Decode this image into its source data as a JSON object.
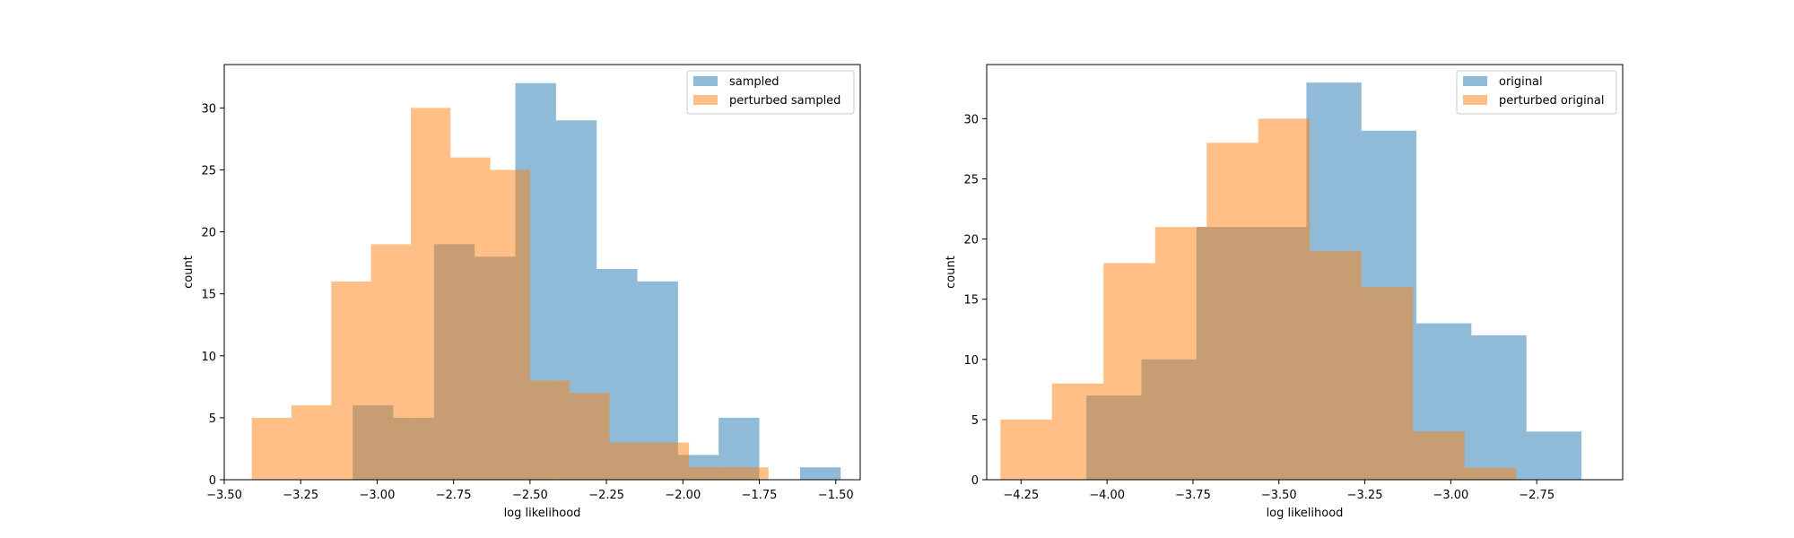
{
  "colors": {
    "series_a": "#1f77b4",
    "series_b": "#ff7f0e",
    "series_alpha": 0.5,
    "axes": "#000000",
    "background": "#ffffff"
  },
  "chart_data": [
    {
      "type": "histogram",
      "xlabel": "log likelihood",
      "ylabel": "count",
      "xlim": [
        -3.5,
        -1.42
      ],
      "ylim": [
        0,
        33.5
      ],
      "xticks": [
        -3.5,
        -3.25,
        -3.0,
        -2.75,
        -2.5,
        -2.25,
        -2.0,
        -1.75,
        -1.5
      ],
      "xtick_labels": [
        "−3.50",
        "−3.25",
        "−3.00",
        "−2.75",
        "−2.50",
        "−2.25",
        "−2.00",
        "−1.75",
        "−1.50"
      ],
      "yticks": [
        0,
        5,
        10,
        15,
        20,
        25,
        30
      ],
      "ytick_labels": [
        "0",
        "5",
        "10",
        "15",
        "20",
        "25",
        "30"
      ],
      "grid": false,
      "legend_position": "top-right",
      "series": [
        {
          "name": "sampled",
          "color": "#1f77b4",
          "bin_edges": [
            -3.08,
            -2.947,
            -2.814,
            -2.681,
            -2.548,
            -2.415,
            -2.282,
            -2.149,
            -2.016,
            -1.883,
            -1.75,
            -1.617,
            -1.484
          ],
          "counts": [
            6,
            5,
            19,
            18,
            32,
            29,
            17,
            16,
            2,
            5,
            0,
            1
          ]
        },
        {
          "name": "perturbed sampled",
          "color": "#ff7f0e",
          "bin_edges": [
            -3.41,
            -3.28,
            -3.15,
            -3.02,
            -2.89,
            -2.76,
            -2.63,
            -2.5,
            -2.37,
            -2.24,
            -2.11,
            -1.98,
            -1.85,
            -1.72
          ],
          "counts": [
            5,
            6,
            16,
            19,
            30,
            26,
            25,
            8,
            7,
            3,
            3,
            1,
            1
          ]
        }
      ]
    },
    {
      "type": "histogram",
      "xlabel": "log likelihood",
      "ylabel": "count",
      "xlim": [
        -4.35,
        -2.5
      ],
      "ylim": [
        0,
        34.5
      ],
      "xticks": [
        -4.25,
        -4.0,
        -3.75,
        -3.5,
        -3.25,
        -3.0,
        -2.75
      ],
      "xtick_labels": [
        "−4.25",
        "−4.00",
        "−3.75",
        "−3.50",
        "−3.25",
        "−3.00",
        "−2.75"
      ],
      "yticks": [
        0,
        5,
        10,
        15,
        20,
        25,
        30
      ],
      "ytick_labels": [
        "0",
        "5",
        "10",
        "15",
        "20",
        "25",
        "30"
      ],
      "grid": false,
      "legend_position": "top-right",
      "series": [
        {
          "name": "original",
          "color": "#1f77b4",
          "bin_edges": [
            -4.06,
            -3.9,
            -3.74,
            -3.58,
            -3.42,
            -3.26,
            -3.1,
            -2.94,
            -2.78,
            -2.62
          ],
          "counts": [
            7,
            10,
            21,
            21,
            33,
            29,
            13,
            12,
            4
          ]
        },
        {
          "name": "perturbed original",
          "color": "#ff7f0e",
          "bin_edges": [
            -4.31,
            -4.16,
            -4.01,
            -3.86,
            -3.71,
            -3.56,
            -3.41,
            -3.26,
            -3.11,
            -2.96,
            -2.81
          ],
          "counts": [
            5,
            8,
            18,
            21,
            28,
            30,
            19,
            16,
            4,
            1
          ]
        }
      ]
    }
  ]
}
